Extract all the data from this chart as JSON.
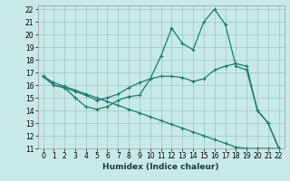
{
  "background_color": "#c8eae6",
  "grid_color": "#a0cccc",
  "line_color": "#1a7a6e",
  "xlabel": "Humidex (Indice chaleur)",
  "xlim": [
    -0.5,
    22.5
  ],
  "ylim": [
    11,
    22.3
  ],
  "xticks": [
    0,
    1,
    2,
    3,
    4,
    5,
    6,
    7,
    8,
    9,
    10,
    11,
    12,
    13,
    14,
    15,
    16,
    17,
    18,
    19,
    20,
    21,
    22
  ],
  "yticks": [
    11,
    12,
    13,
    14,
    15,
    16,
    17,
    18,
    19,
    20,
    21,
    22
  ],
  "lines": [
    {
      "x": [
        0,
        1,
        2,
        3,
        4,
        5,
        6,
        7,
        8,
        9,
        10,
        11,
        12,
        13,
        14,
        15,
        16,
        17,
        18,
        19,
        20,
        21,
        22
      ],
      "y": [
        16.7,
        16.0,
        15.8,
        15.0,
        14.3,
        14.1,
        14.3,
        14.8,
        15.1,
        15.2,
        16.5,
        18.3,
        20.5,
        19.3,
        18.8,
        21.0,
        22.0,
        20.8,
        17.5,
        17.2,
        14.0,
        13.0,
        11.0
      ]
    },
    {
      "x": [
        0,
        1,
        2,
        3,
        4,
        5,
        6,
        7,
        8,
        9,
        10,
        11,
        12,
        13,
        14,
        15,
        16,
        17,
        18,
        19,
        20,
        21,
        22
      ],
      "y": [
        16.7,
        16.0,
        15.8,
        15.5,
        15.2,
        14.8,
        15.0,
        15.3,
        15.8,
        16.2,
        16.5,
        16.7,
        16.7,
        16.6,
        16.3,
        16.5,
        17.2,
        17.5,
        17.7,
        17.5,
        14.0,
        13.0,
        11.0
      ]
    },
    {
      "x": [
        0,
        1,
        2,
        3,
        4,
        5,
        6,
        7,
        8,
        9,
        10,
        11,
        12,
        13,
        14,
        15,
        16,
        17,
        18,
        19,
        20,
        21,
        22
      ],
      "y": [
        16.7,
        16.2,
        15.9,
        15.6,
        15.3,
        15.0,
        14.7,
        14.4,
        14.1,
        13.8,
        13.5,
        13.2,
        12.9,
        12.6,
        12.3,
        12.0,
        11.7,
        11.4,
        11.1,
        11.0,
        11.0,
        11.0,
        11.0
      ]
    }
  ]
}
